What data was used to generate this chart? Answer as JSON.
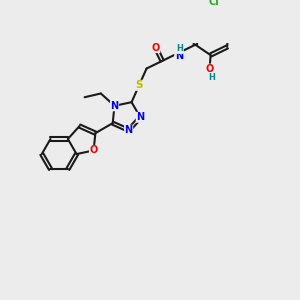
{
  "bg_color": "#ececec",
  "bond_color": "#1a1a1a",
  "atom_colors": {
    "N": "#0000ee",
    "O": "#ee0000",
    "S": "#bbbb00",
    "Cl": "#22aa22",
    "H": "#008888",
    "C": "#1a1a1a"
  },
  "lw": 1.5,
  "fs": 7.0,
  "fsh": 6.0
}
